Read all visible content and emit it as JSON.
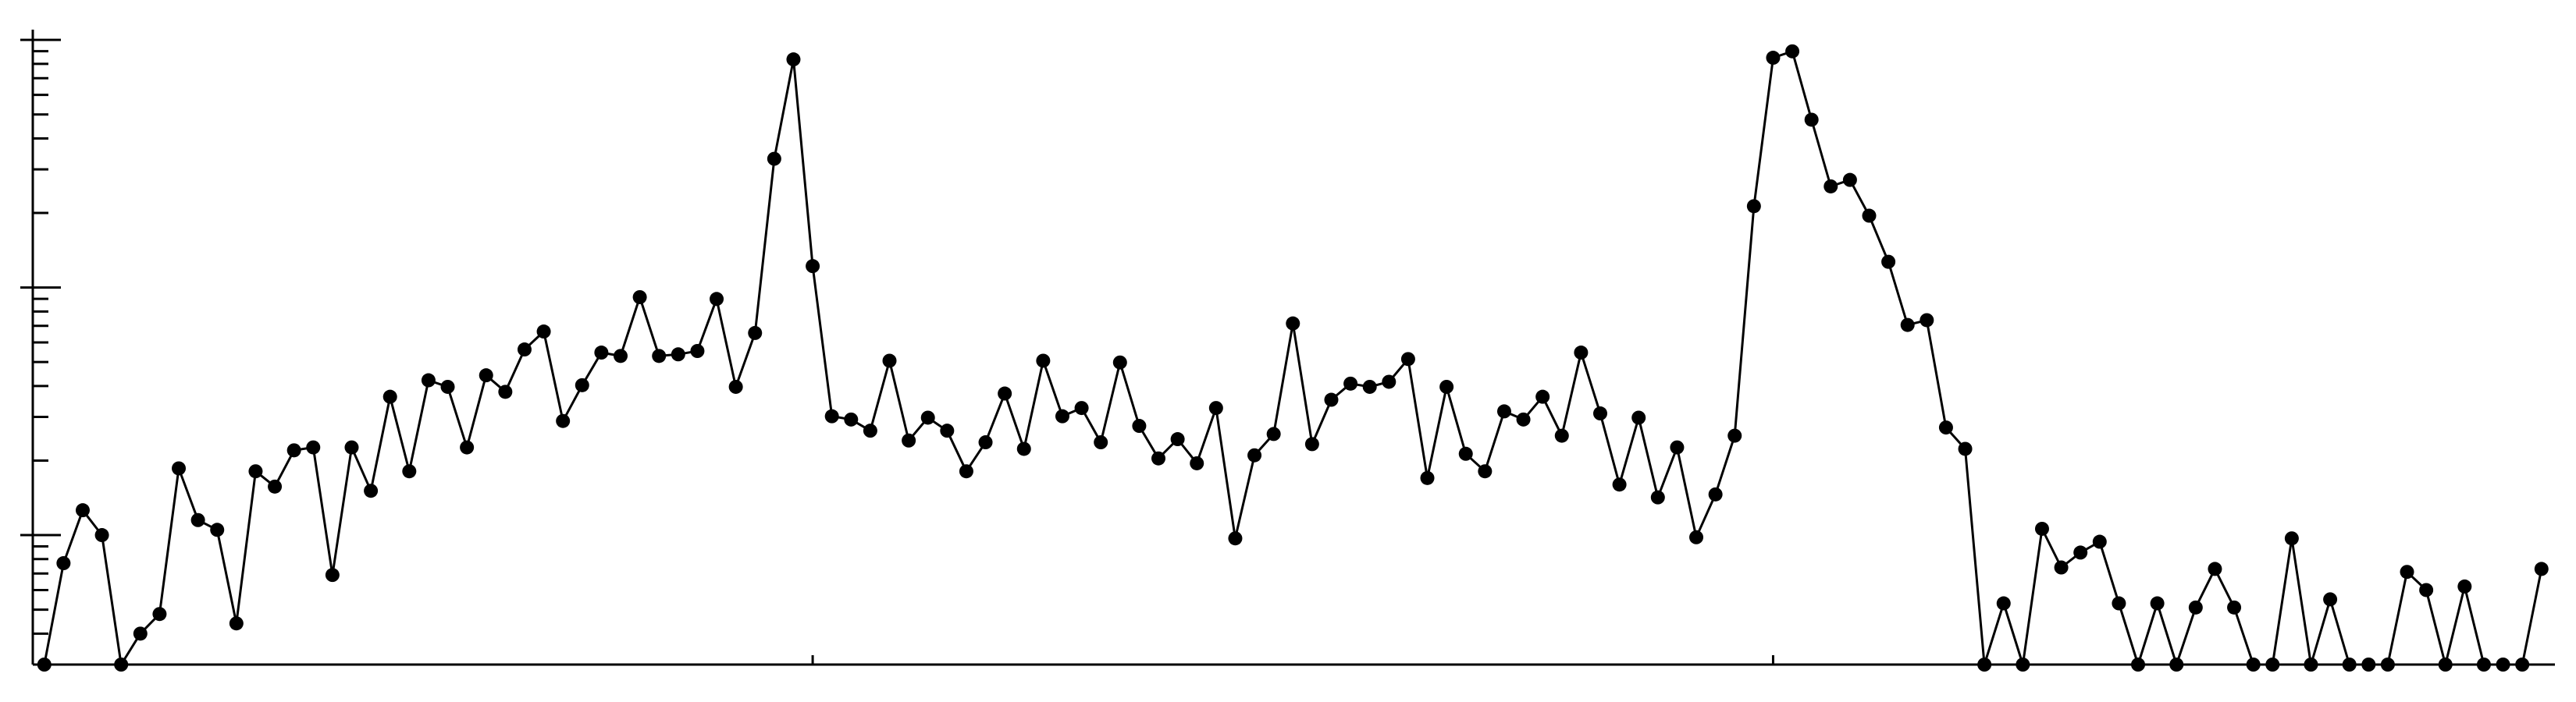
{
  "chart_data": {
    "type": "line",
    "log_scale_y": true,
    "color": "#000000",
    "x": [
      0,
      1,
      2,
      3,
      4,
      5,
      6,
      7,
      8,
      9,
      10,
      11,
      12,
      13,
      14,
      15,
      16,
      17,
      18,
      19,
      20,
      21,
      22,
      23,
      24,
      25,
      26,
      27,
      28,
      29,
      30,
      31,
      32,
      33,
      34,
      35,
      36,
      37,
      38,
      39,
      40,
      41,
      42,
      43,
      44,
      45,
      46,
      47,
      48,
      49,
      50,
      51,
      52,
      53,
      54,
      55,
      56,
      57,
      58,
      59,
      60,
      61,
      62,
      63,
      64,
      65,
      66,
      67,
      68,
      69,
      70,
      71,
      72,
      73,
      74,
      75,
      76,
      77,
      78,
      79,
      80,
      81,
      82,
      83,
      84,
      85,
      86,
      87,
      88,
      89,
      90,
      91,
      92,
      93,
      94,
      95,
      96,
      97,
      98,
      99,
      100,
      101,
      102,
      103,
      104,
      105,
      106,
      107,
      108,
      109,
      110,
      111,
      112,
      113,
      114,
      115,
      116,
      117,
      118,
      119,
      120,
      121,
      122,
      123,
      124,
      125,
      126,
      127,
      128,
      129,
      130
    ],
    "values": [
      3,
      7.7,
      12.6,
      10,
      3,
      4,
      4.8,
      18.6,
      11.5,
      10.5,
      4.4,
      18.1,
      15.7,
      22,
      22.6,
      6.9,
      22.6,
      15.1,
      36.2,
      18.1,
      42.2,
      39.7,
      22.6,
      44.2,
      37.9,
      56.2,
      66.4,
      28.9,
      40.3,
      54.6,
      52.9,
      91.4,
      52.9,
      53.7,
      55.4,
      89.9,
      39.7,
      65.5,
      331,
      834,
      122,
      30.2,
      29.3,
      26.4,
      50.6,
      24.1,
      29.8,
      26.4,
      18.1,
      23.7,
      37.3,
      22.3,
      50.6,
      30.2,
      32.6,
      23.7,
      49.8,
      27.6,
      20.4,
      24.4,
      19.5,
      32.6,
      9.7,
      21,
      25.6,
      71.6,
      23.3,
      35.2,
      40.9,
      39.7,
      41.6,
      51.4,
      17,
      39.7,
      21.3,
      18.1,
      31.6,
      29.3,
      36.2,
      25.2,
      54.6,
      31,
      16,
      29.8,
      14.2,
      22.6,
      9.8,
      14.6,
      25.2,
      213,
      847,
      899,
      476,
      256,
      272,
      195,
      127,
      70.6,
      73.8,
      27.2,
      22.3,
      3,
      5.3,
      3,
      10.6,
      7.4,
      8.5,
      9.4,
      5.3,
      3,
      5.3,
      3,
      5.1,
      7.3,
      5.1,
      3,
      3,
      9.7,
      3,
      5.5,
      3,
      3,
      3,
      7.1,
      6,
      3,
      6.2,
      3,
      3,
      3,
      7.3
    ],
    "xlim": [
      -0.6,
      130.7
    ],
    "xticks": [
      40,
      90
    ],
    "ylim": [
      3,
      1100
    ],
    "yticks": [
      10,
      100,
      1000
    ],
    "yminorticks": [
      4,
      5,
      6,
      7,
      8,
      9,
      20,
      30,
      40,
      50,
      60,
      70,
      80,
      90,
      200,
      300,
      400,
      500,
      600,
      700,
      800,
      900
    ]
  }
}
